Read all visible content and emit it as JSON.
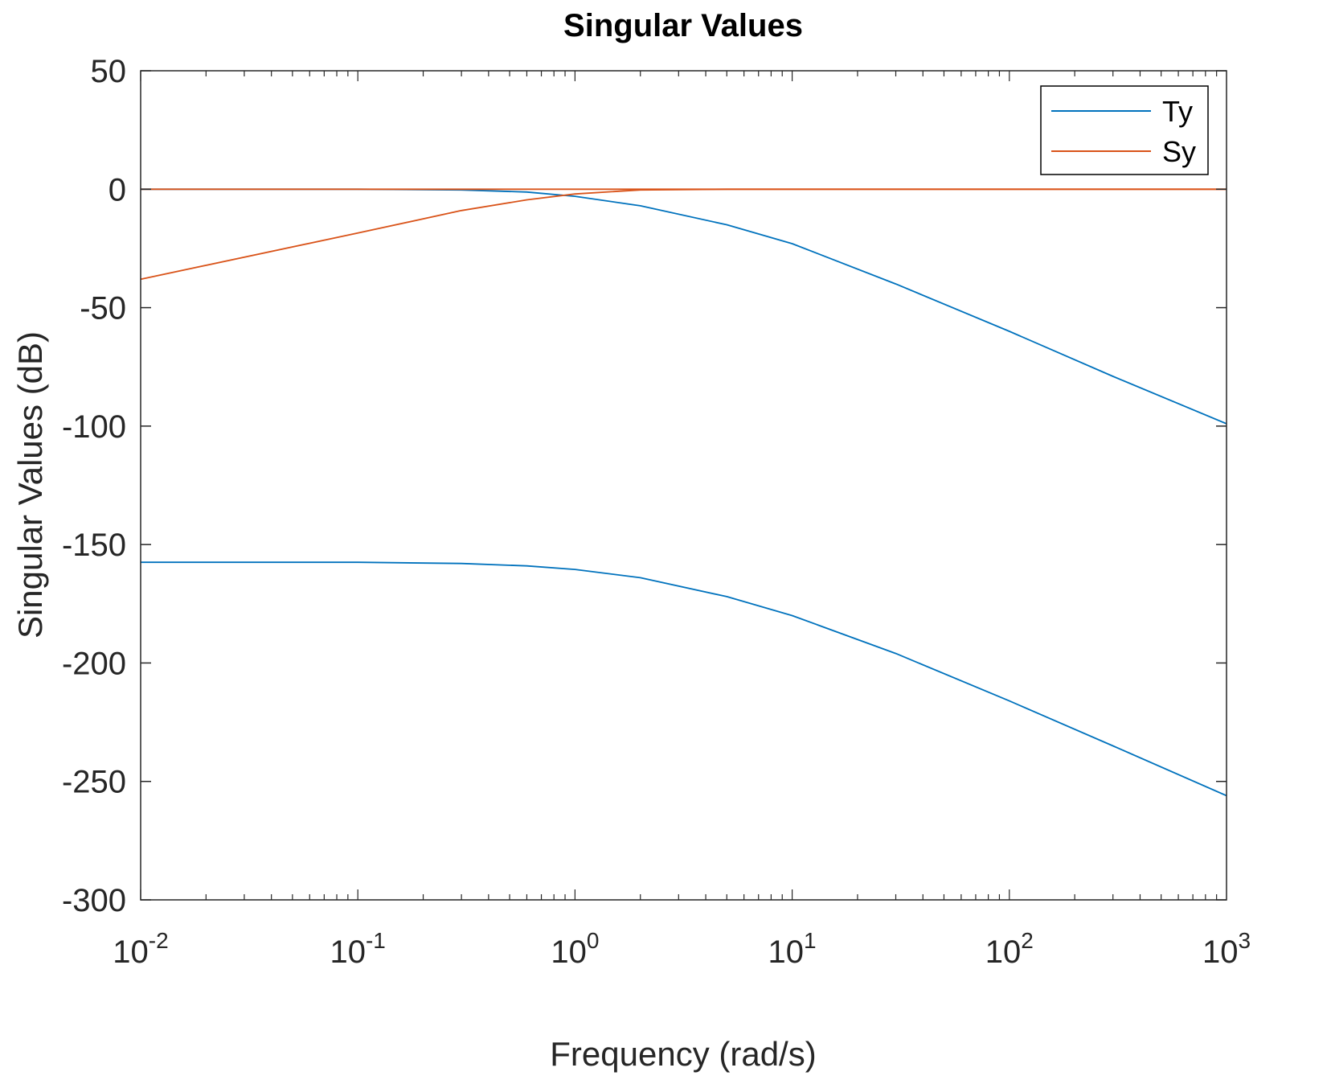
{
  "chart_data": {
    "type": "line",
    "title": "Singular Values",
    "xlabel": "Frequency (rad/s)",
    "ylabel": "Singular Values (dB)",
    "xscale": "log",
    "xlim": [
      0.01,
      1000
    ],
    "ylim": [
      -300,
      50
    ],
    "yticks": [
      50,
      0,
      -50,
      -100,
      -150,
      -200,
      -250,
      -300
    ],
    "ytick_labels": [
      "50",
      "0",
      "-50",
      "-100",
      "-150",
      "-200",
      "-250",
      "-300"
    ],
    "xticks": [
      {
        "base": "10",
        "exp": "-2",
        "value": 0.01
      },
      {
        "base": "10",
        "exp": "-1",
        "value": 0.1
      },
      {
        "base": "10",
        "exp": "0",
        "value": 1
      },
      {
        "base": "10",
        "exp": "1",
        "value": 10
      },
      {
        "base": "10",
        "exp": "2",
        "value": 100
      },
      {
        "base": "10",
        "exp": "3",
        "value": 1000
      }
    ],
    "grid": false,
    "legend_position": "top-right",
    "series": [
      {
        "name": "Ty",
        "color": "#0072BD",
        "x": [
          0.01,
          0.1,
          0.3,
          0.6,
          1,
          2,
          5,
          10,
          30,
          100,
          300,
          1000
        ],
        "y": [
          0,
          0,
          -0.3,
          -1.2,
          -3,
          -7,
          -15,
          -23,
          -40,
          -60,
          -79,
          -99
        ]
      },
      {
        "name": "Sy",
        "color": "#D95319",
        "x": [
          0.01,
          0.1,
          0.3,
          0.6,
          1,
          2,
          5,
          10,
          100,
          1000
        ],
        "y": [
          -38,
          -18.5,
          -9,
          -4.5,
          -2,
          -0.3,
          0,
          0,
          0,
          0
        ]
      },
      {
        "name": "",
        "color": "#0072BD",
        "x": [
          0.01,
          0.1,
          0.3,
          0.6,
          1,
          2,
          5,
          10,
          30,
          100,
          300,
          1000
        ],
        "y": [
          -157.5,
          -157.5,
          -158,
          -159,
          -160.5,
          -164,
          -172,
          -180,
          -196,
          -216,
          -235,
          -256
        ]
      },
      {
        "name": "",
        "color": "#D95319",
        "x": [
          0.01,
          1000
        ],
        "y": [
          0,
          0
        ]
      }
    ]
  }
}
